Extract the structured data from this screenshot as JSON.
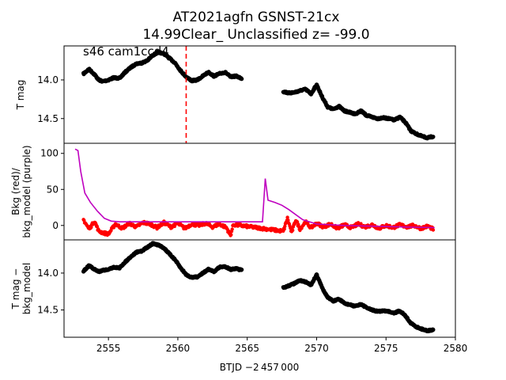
{
  "title_line1": "AT2021agfn  GSNST-21cx",
  "title_line2": "14.99Clear_ Unclassified z= -99.0",
  "annotation": "s46 cam1ccd4",
  "xlabel": "BTJD −2 457 000",
  "x_ticks": [
    "2555",
    "2560",
    "2565",
    "2570",
    "2575",
    "2580"
  ],
  "colors": {
    "points": "#000000",
    "bkg": "#ff0000",
    "model": "#bf00bf",
    "marker": "#ff0000"
  },
  "chart_data": [
    {
      "type": "scatter",
      "panel": "top",
      "ylabel": "T mag",
      "y_ticks": [
        "14.0",
        "14.5"
      ],
      "xlim": [
        2551.8,
        2580
      ],
      "ylim": [
        14.82,
        13.56
      ],
      "inverted_y": true,
      "vline": {
        "x": 2560.6,
        "style": "dashed",
        "color": "#ff0000"
      },
      "series": [
        {
          "x": [
            2553.2,
            2553.6,
            2554.0,
            2554.3,
            2554.6,
            2555.0,
            2555.4,
            2555.8,
            2556.2,
            2556.6,
            2557.0,
            2557.4,
            2557.8,
            2558.2,
            2558.6,
            2559.0,
            2559.4,
            2559.8,
            2560.2,
            2560.6,
            2561.0,
            2561.4,
            2561.8,
            2562.2,
            2562.6,
            2563.0,
            2563.4,
            2563.8,
            2564.2,
            2564.6
          ],
          "y": [
            13.92,
            13.86,
            13.93,
            14.0,
            14.02,
            14.0,
            13.97,
            13.98,
            13.9,
            13.84,
            13.79,
            13.78,
            13.75,
            13.68,
            13.64,
            13.66,
            13.72,
            13.78,
            13.88,
            13.96,
            14.01,
            14.0,
            13.95,
            13.9,
            13.95,
            13.92,
            13.9,
            13.96,
            13.95,
            13.98
          ]
        },
        {
          "x": [
            2567.6,
            2568.0,
            2568.4,
            2568.8,
            2569.2,
            2569.6,
            2570.0,
            2570.4,
            2570.8,
            2571.2,
            2571.6,
            2572.0,
            2572.4,
            2572.8,
            2573.2,
            2573.6,
            2574.0,
            2574.4,
            2574.8,
            2575.2,
            2575.6,
            2576.0,
            2576.4,
            2576.8,
            2577.2,
            2577.6,
            2578.0,
            2578.4
          ],
          "y": [
            14.15,
            14.17,
            14.16,
            14.14,
            14.12,
            14.18,
            14.06,
            14.22,
            14.35,
            14.38,
            14.34,
            14.4,
            14.42,
            14.44,
            14.4,
            14.46,
            14.48,
            14.5,
            14.49,
            14.5,
            14.52,
            14.48,
            14.55,
            14.66,
            14.7,
            14.73,
            14.75,
            14.73
          ]
        }
      ]
    },
    {
      "type": "line",
      "panel": "middle",
      "ylabel": "Bkg (red)/\nbkg_model (purple)",
      "y_ticks": [
        "0",
        "50",
        "100"
      ],
      "xlim": [
        2551.8,
        2580
      ],
      "ylim": [
        -20,
        114
      ],
      "series": [
        {
          "kind": "points",
          "x": [
            2553.2,
            2553.6,
            2554.0,
            2554.3,
            2554.6,
            2555.0,
            2555.5,
            2556.0,
            2556.5,
            2557.0,
            2557.5,
            2558.0,
            2558.5,
            2559.0,
            2559.5,
            2560.0,
            2560.5,
            2561.0,
            2561.5,
            2562.0,
            2562.5,
            2563.0,
            2563.5,
            2563.8,
            2564.0,
            2564.5,
            2567.6,
            2567.9,
            2568.2,
            2568.5,
            2568.8,
            2569.2,
            2569.6,
            2570.0,
            2570.5,
            2571.0,
            2571.5,
            2572.0,
            2572.5,
            2573.0,
            2573.5,
            2574.0,
            2574.5,
            2575.0,
            2575.5,
            2576.0,
            2576.5,
            2577.0,
            2577.5,
            2578.0,
            2578.4
          ],
          "y": [
            8,
            -5,
            6,
            -8,
            -10,
            -12,
            2,
            -4,
            3,
            -2,
            4,
            2,
            -3,
            4,
            -2,
            3,
            -4,
            2,
            0,
            3,
            -2,
            2,
            -3,
            -14,
            1,
            0,
            -8,
            10,
            -10,
            8,
            -5,
            5,
            -3,
            3,
            -2,
            2,
            -4,
            1,
            -3,
            2,
            -2,
            1,
            -4,
            0,
            -3,
            1,
            -2,
            0,
            -4,
            -1,
            -5
          ]
        },
        {
          "kind": "line",
          "x": [
            2552.6,
            2552.8,
            2553.0,
            2553.3,
            2553.7,
            2554.2,
            2554.7,
            2555.2,
            2555.8,
            2560.0,
            2564.5,
            2566.1,
            2566.3,
            2566.5,
            2567.0,
            2567.5,
            2568.0,
            2569.0,
            2570.0,
            2572.0,
            2574.0,
            2576.0,
            2578.5
          ],
          "y": [
            106,
            104,
            75,
            45,
            32,
            20,
            10,
            6,
            5,
            5,
            5,
            5,
            65,
            35,
            32,
            28,
            22,
            8,
            2,
            0,
            -1,
            -2,
            -3
          ]
        }
      ]
    },
    {
      "type": "scatter",
      "panel": "bottom",
      "ylabel": "T mag −\nbkg_model",
      "y_ticks": [
        "14.0",
        "14.5"
      ],
      "xlim": [
        2551.8,
        2580
      ],
      "ylim": [
        14.87,
        13.55
      ],
      "inverted_y": true,
      "series": [
        {
          "x": [
            2553.2,
            2553.6,
            2554.0,
            2554.3,
            2554.6,
            2555.0,
            2555.4,
            2555.8,
            2556.2,
            2556.6,
            2557.0,
            2557.4,
            2557.8,
            2558.2,
            2558.6,
            2559.0,
            2559.4,
            2559.8,
            2560.2,
            2560.6,
            2561.0,
            2561.4,
            2561.8,
            2562.2,
            2562.6,
            2563.0,
            2563.4,
            2563.8,
            2564.2,
            2564.6
          ],
          "y": [
            13.97,
            13.9,
            13.95,
            13.98,
            13.96,
            13.95,
            13.92,
            13.93,
            13.85,
            13.78,
            13.72,
            13.7,
            13.65,
            13.6,
            13.62,
            13.66,
            13.74,
            13.82,
            13.93,
            14.02,
            14.06,
            14.05,
            14.0,
            13.95,
            13.98,
            13.92,
            13.91,
            13.95,
            13.94,
            13.96
          ]
        },
        {
          "x": [
            2567.6,
            2568.0,
            2568.4,
            2568.8,
            2569.2,
            2569.6,
            2570.0,
            2570.4,
            2570.8,
            2571.2,
            2571.6,
            2572.0,
            2572.4,
            2572.8,
            2573.2,
            2573.6,
            2574.0,
            2574.4,
            2574.8,
            2575.2,
            2575.6,
            2576.0,
            2576.4,
            2576.8,
            2577.2,
            2577.6,
            2578.0,
            2578.4
          ],
          "y": [
            14.2,
            14.17,
            14.14,
            14.1,
            14.12,
            14.16,
            14.02,
            14.2,
            14.33,
            14.38,
            14.35,
            14.41,
            14.43,
            14.45,
            14.42,
            14.47,
            14.5,
            14.52,
            14.51,
            14.52,
            14.54,
            14.51,
            14.58,
            14.68,
            14.73,
            14.76,
            14.78,
            14.77
          ]
        }
      ]
    }
  ]
}
